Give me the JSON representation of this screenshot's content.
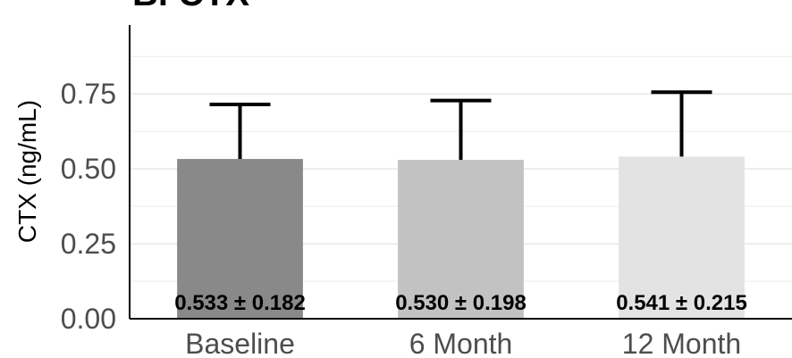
{
  "panel_label": "B. CTX",
  "chart_data": {
    "type": "bar",
    "title": "B. CTX",
    "xlabel": "",
    "ylabel": "CTX (ng/mL)",
    "categories": [
      "Baseline",
      "6 Month",
      "12 Month"
    ],
    "values": [
      0.533,
      0.53,
      0.541
    ],
    "errors": [
      0.182,
      0.198,
      0.215
    ],
    "bar_labels": [
      "0.533 ± 0.182",
      "0.530 ± 0.198",
      "0.541 ± 0.215"
    ],
    "bar_colors": [
      "#898989",
      "#c2c2c2",
      "#e3e3e3"
    ],
    "ylim": [
      0,
      0.98
    ],
    "yticks": [
      0.0,
      0.25,
      0.5,
      0.75
    ],
    "ytick_labels": [
      "0.00",
      "0.25",
      "0.50",
      "0.75"
    ],
    "minor_grid": [
      0.125,
      0.375,
      0.625,
      0.875
    ],
    "grid": true,
    "error_bar_style": "upper-only",
    "grid_color": "#ebebeb",
    "axis_color": "#000000"
  }
}
